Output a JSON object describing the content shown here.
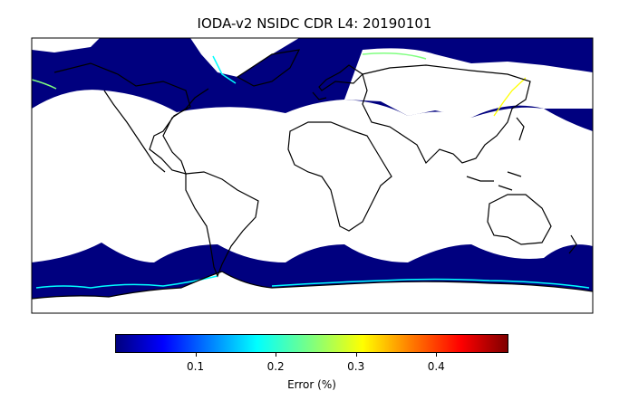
{
  "title": "IODA-v2 NSIDC CDR L4: 20190101",
  "colors": {
    "ice_low": "#00007f",
    "land": "#ffffff",
    "coast": "#000000"
  },
  "colorbar": {
    "label": "Error (%)",
    "colormap": "jet",
    "range": [
      0.0,
      0.49
    ],
    "ticks": [
      "0.1",
      "0.2",
      "0.3",
      "0.4"
    ]
  }
}
